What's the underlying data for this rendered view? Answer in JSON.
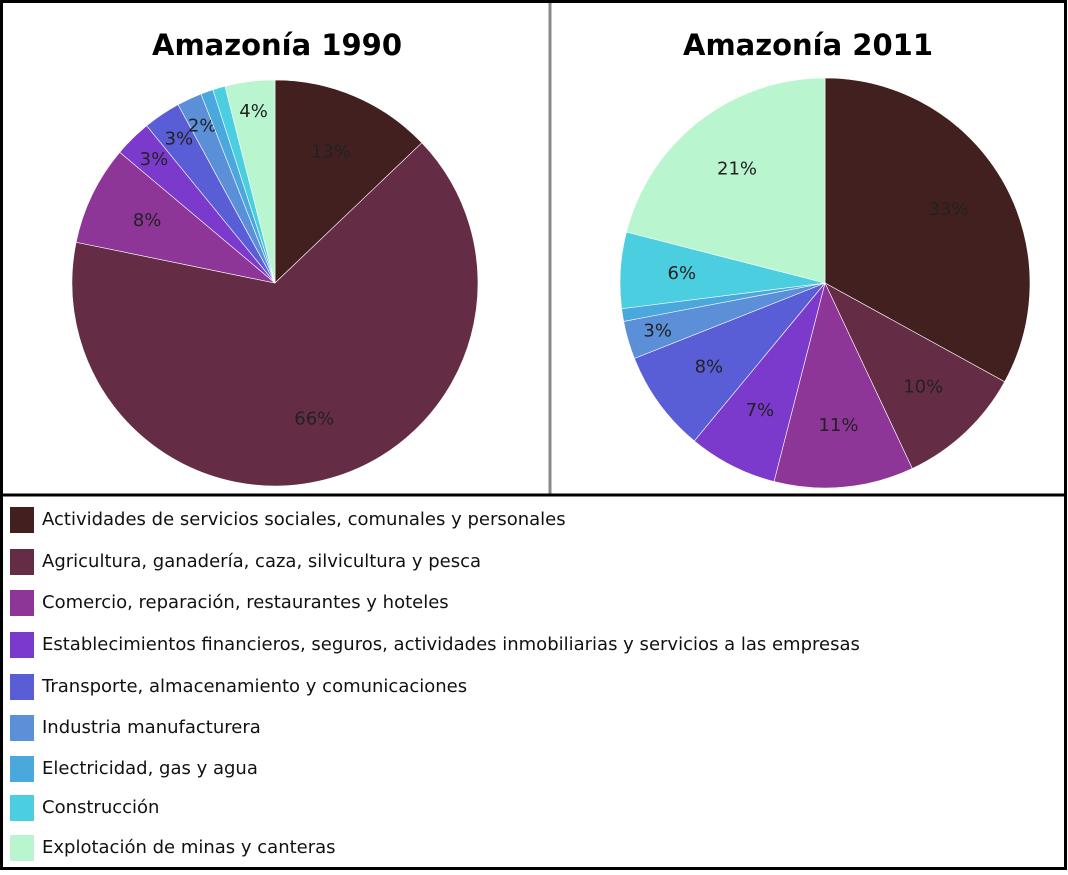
{
  "legend": {
    "names": [
      "Actividades de servicios sociales, comunales y personales",
      "Agricultura, ganadería, caza, silvicultura y pesca",
      "Comercio, reparación, restaurantes y hoteles",
      "Establecimientos financieros, seguros, actividades inmobiliarias y servicios a las empresas",
      "Transporte, almacenamiento y comunicaciones",
      "Industria manufacturera",
      "Electricidad, gas y agua",
      "Construcción",
      "Explotación de minas y canteras"
    ],
    "colors": [
      "#42201f",
      "#652c46",
      "#8e3598",
      "#7c3acd",
      "#5a5ed6",
      "#5b8fd8",
      "#4aa8dc",
      "#4bcfe0",
      "#b9f5cf"
    ]
  },
  "chart_data": [
    {
      "type": "pie",
      "title": "Amazonía 1990",
      "values": [
        13,
        66,
        8,
        3,
        3,
        2,
        1,
        1,
        4
      ],
      "value_labels": [
        "13%",
        "66%",
        "8%",
        "3%",
        "3%",
        "2%",
        null,
        null,
        "4%"
      ]
    },
    {
      "type": "pie",
      "title": "Amazonía 2011",
      "values": [
        33,
        10,
        11,
        7,
        8,
        3,
        1,
        6,
        21
      ],
      "value_labels": [
        "33%",
        "10%",
        "11%",
        "7%",
        "8%",
        "3%",
        null,
        "6%",
        "21%"
      ]
    }
  ]
}
